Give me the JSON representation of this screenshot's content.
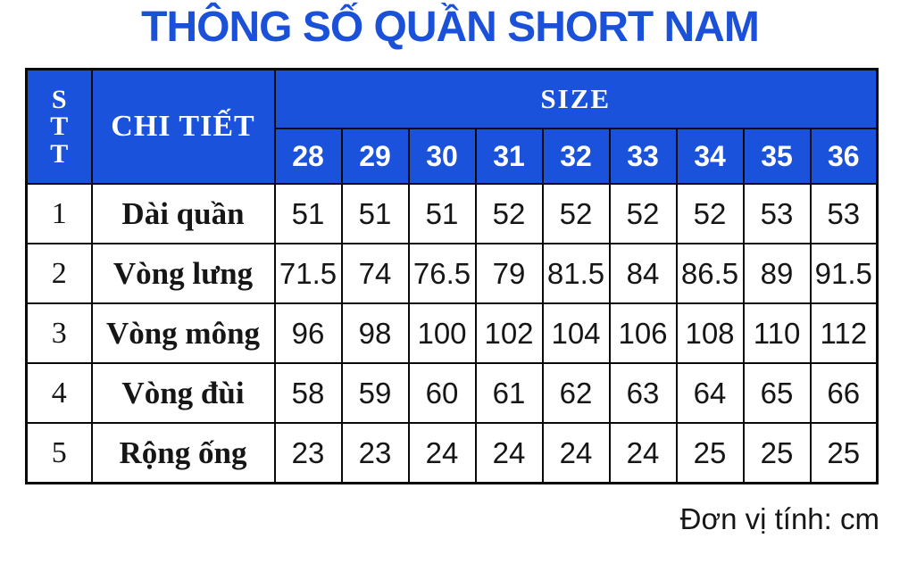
{
  "page": {
    "title": "THÔNG SỐ QUẦN SHORT NAM",
    "unit_note": "Đơn vị tính: cm"
  },
  "colors": {
    "title_blue": "#1b51d8",
    "header_blue": "#1b52dc",
    "header_text": "#ffffff",
    "body_text": "#161616",
    "border": "#0a0a0a"
  },
  "table": {
    "stt_header": "STT",
    "stt_header_stacked": "S\nT\nT",
    "detail_header": "CHI TIẾT",
    "size_header": "SIZE",
    "size_columns": [
      "28",
      "29",
      "30",
      "31",
      "32",
      "33",
      "34",
      "35",
      "36"
    ],
    "rows": [
      {
        "stt": "1",
        "label": "Dài quần",
        "values": [
          "51",
          "51",
          "51",
          "52",
          "52",
          "52",
          "52",
          "53",
          "53"
        ]
      },
      {
        "stt": "2",
        "label": "Vòng lưng",
        "values": [
          "71.5",
          "74",
          "76.5",
          "79",
          "81.5",
          "84",
          "86.5",
          "89",
          "91.5"
        ]
      },
      {
        "stt": "3",
        "label": "Vòng mông",
        "values": [
          "96",
          "98",
          "100",
          "102",
          "104",
          "106",
          "108",
          "110",
          "112"
        ]
      },
      {
        "stt": "4",
        "label": "Vòng đùi",
        "values": [
          "58",
          "59",
          "60",
          "61",
          "62",
          "63",
          "64",
          "65",
          "66"
        ]
      },
      {
        "stt": "5",
        "label": "Rộng ống",
        "values": [
          "23",
          "23",
          "24",
          "24",
          "24",
          "24",
          "25",
          "25",
          "25"
        ]
      }
    ]
  }
}
